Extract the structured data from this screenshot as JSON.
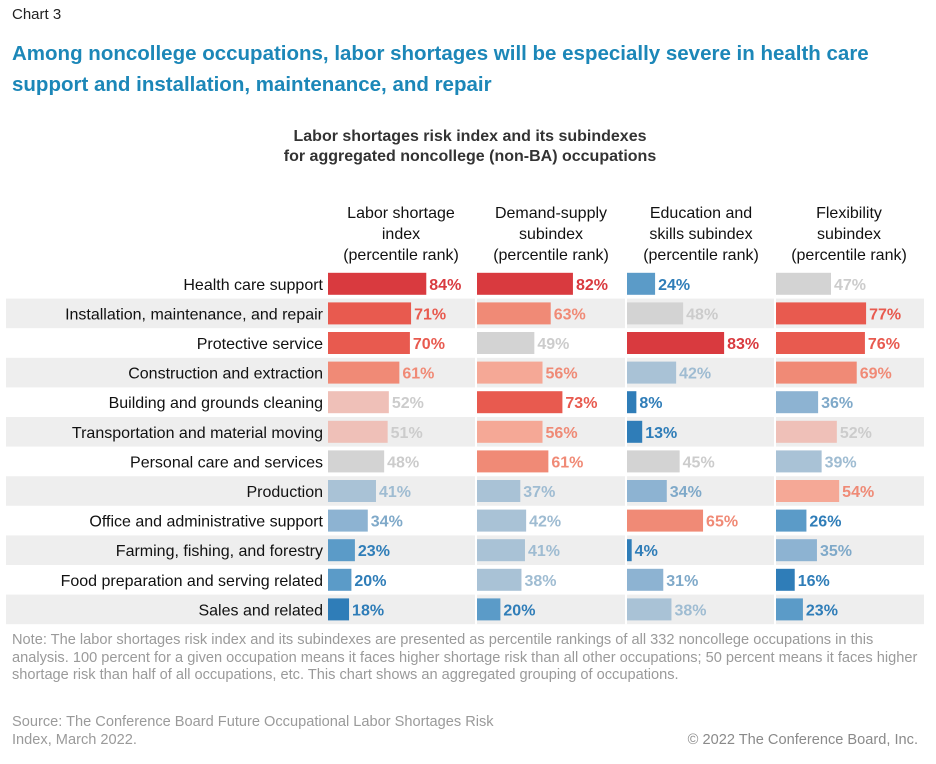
{
  "chart_number": "Chart 3",
  "headline": "Among noncollege occupations, labor shortages will be especially severe in health care support and installation, maintenance, and repair",
  "chart_title_lines": [
    "Labor shortages risk index and its subindexes",
    "for aggregated noncollege (non-BA) occupations"
  ],
  "note": "Note: The labor shortages risk index and its subindexes are presented as percentile rankings of all 332 noncollege occupations in this analysis. 100 percent for a given occupation means it faces higher shortage risk than all other occupations; 50 percent means it faces higher shortage risk than half of all occupations, etc. This chart shows an aggregated grouping of occupations.",
  "source": "Source: The Conference Board Future Occupational Labor Shortages Risk Index, March 2022.",
  "copyright": "© 2022 The Conference Board, Inc.",
  "chart_data": {
    "type": "bar",
    "orientation": "horizontal",
    "value_unit": "%",
    "xlim": [
      0,
      100
    ],
    "categories": [
      "Health care support",
      "Installation, maintenance, and repair",
      "Protective service",
      "Construction and extraction",
      "Building and grounds cleaning",
      "Transportation and material moving",
      "Personal care and services",
      "Production",
      "Office and administrative support",
      "Farming, fishing, and forestry",
      "Food preparation and serving related",
      "Sales and related"
    ],
    "series": [
      {
        "name": "Labor shortage index (percentile rank)",
        "header_lines": [
          "Labor shortage",
          "index",
          "(percentile rank)"
        ],
        "values": [
          84,
          71,
          70,
          61,
          52,
          51,
          48,
          41,
          34,
          23,
          20,
          18
        ]
      },
      {
        "name": "Demand-supply subindex (percentile rank)",
        "header_lines": [
          "Demand-supply",
          "subindex",
          "(percentile rank)"
        ],
        "values": [
          82,
          63,
          49,
          56,
          73,
          56,
          61,
          37,
          42,
          41,
          38,
          20
        ]
      },
      {
        "name": "Education and skills subindex (percentile rank)",
        "header_lines": [
          "Education and",
          "skills subindex",
          "(percentile rank)"
        ],
        "values": [
          24,
          48,
          83,
          42,
          8,
          13,
          45,
          34,
          65,
          4,
          31,
          38
        ]
      },
      {
        "name": "Flexibility subindex (percentile rank)",
        "header_lines": [
          "Flexibility",
          "subindex",
          "(percentile rank)"
        ],
        "values": [
          47,
          77,
          76,
          69,
          36,
          52,
          39,
          54,
          26,
          35,
          16,
          23
        ]
      }
    ],
    "color_scale": {
      "high_red": "#d93a3f",
      "red": "#e85a4f",
      "salmon": "#f08a76",
      "light_salmon": "#f5a896",
      "pink": "#efc0b8",
      "neutral_gray": "#d3d3d3",
      "light_blue": "#a9c2d6",
      "mid_blue": "#8db3d2",
      "blue": "#5b9bc8",
      "dark_blue": "#2f7db8",
      "row_stripe": "#eeeeee"
    }
  }
}
